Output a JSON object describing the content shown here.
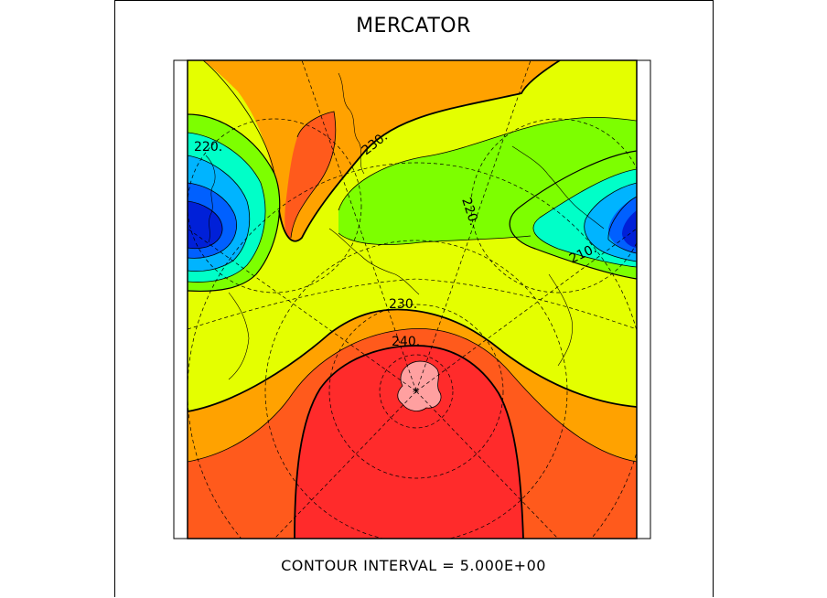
{
  "title": "MERCATOR",
  "footer": "CONTOUR INTERVAL = 5.000E+00",
  "contour_labels": [
    "220.",
    "230.",
    "220.",
    "210.",
    "230.",
    "240."
  ],
  "colors": {
    "deep_red": "#ff2b2b",
    "red_orange": "#ff5a1c",
    "orange": "#ffa200",
    "yellow_green": "#e4ff00",
    "green": "#7dff00",
    "aqua": "#00ffc8",
    "sky_blue": "#00b4ff",
    "blue": "#0060ff",
    "navy": "#0020d8",
    "pink": "#ffa0a0"
  }
}
